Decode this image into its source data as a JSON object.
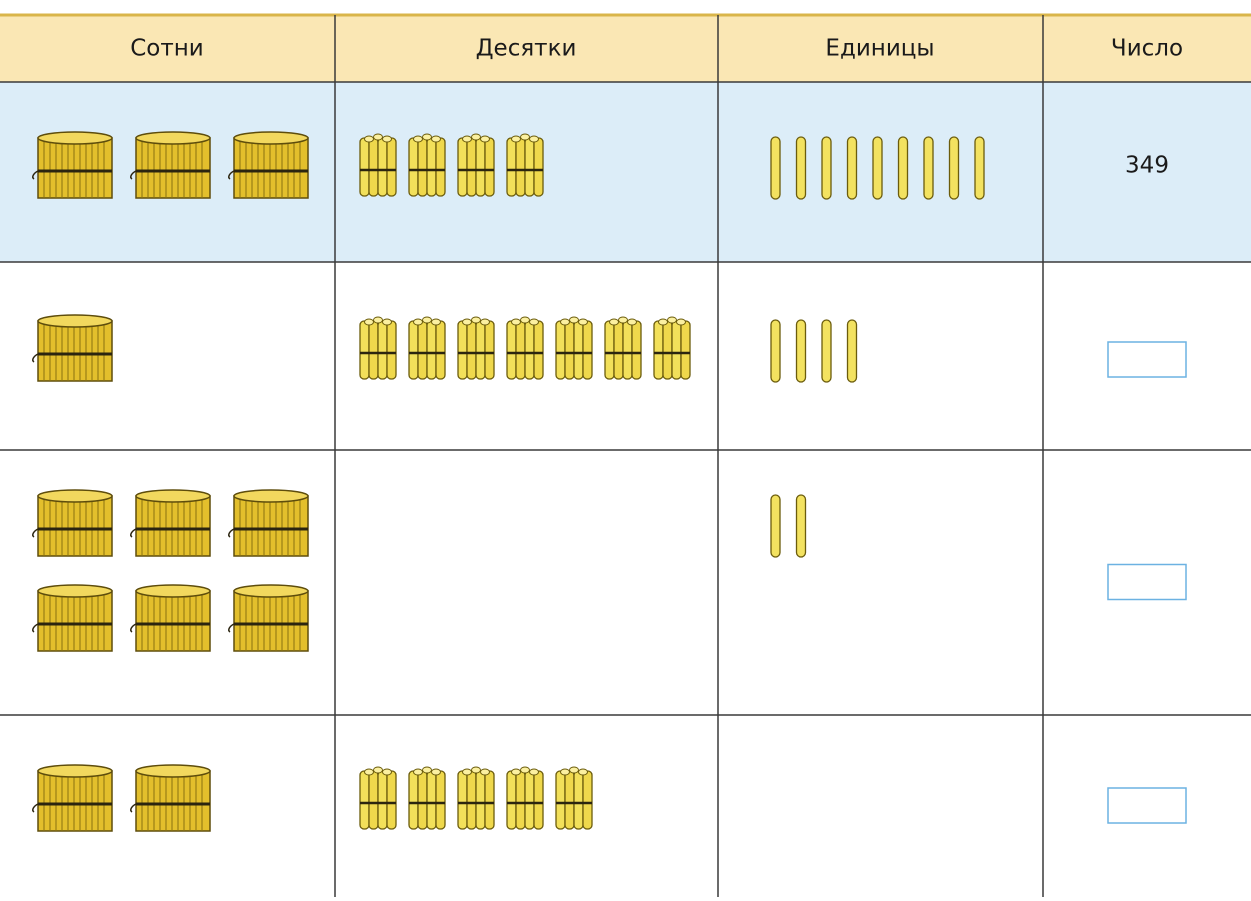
{
  "table": {
    "headers": [
      "Сотни",
      "Десятки",
      "Единицы",
      "Число"
    ],
    "rows": [
      {
        "hundreds": 3,
        "tens": 4,
        "units": 9,
        "number": 349
      },
      {
        "hundreds": 1,
        "tens": 7,
        "units": 4
      },
      {
        "hundreds": 6,
        "tens": 0,
        "units": 2
      },
      {
        "hundreds": 2,
        "tens": 5,
        "units": 0
      }
    ]
  }
}
